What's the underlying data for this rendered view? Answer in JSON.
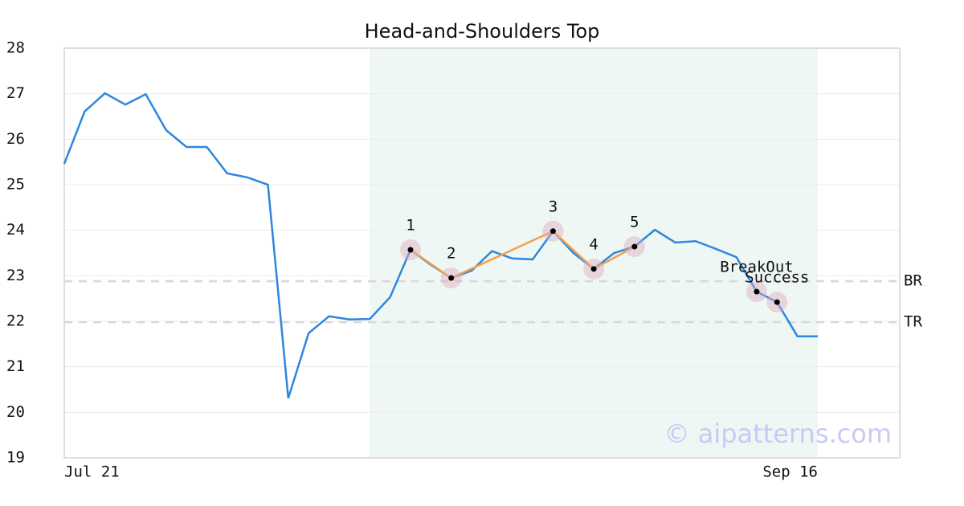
{
  "chart_data": {
    "type": "line",
    "title": "Head-and-Shoulders Top",
    "categories": [
      "Jul 21",
      null,
      null,
      null,
      null,
      null,
      null,
      null,
      null,
      null,
      null,
      null,
      null,
      null,
      null,
      null,
      null,
      null,
      null,
      null,
      null,
      null,
      null,
      null,
      null,
      null,
      null,
      null,
      null,
      null,
      null,
      null,
      null,
      null,
      null,
      null,
      null,
      "Sep 16"
    ],
    "series": [
      {
        "color": "#2e86de",
        "values": [
          25.46,
          26.61,
          27.01,
          26.76,
          26.99,
          26.2,
          25.83,
          25.83,
          25.25,
          25.16,
          25.0,
          20.31,
          21.74,
          22.11,
          22.04,
          22.05,
          22.53,
          23.57,
          23.24,
          22.95,
          23.11,
          23.54,
          23.38,
          23.36,
          23.98,
          23.5,
          23.15,
          23.5,
          23.64,
          24.01,
          23.73,
          23.76,
          23.59,
          23.41,
          22.65,
          22.42,
          21.67,
          21.67
        ]
      }
    ],
    "pattern": {
      "color": "#f4a04a",
      "points": [
        {
          "label": "1",
          "at": 17,
          "value": 23.57
        },
        {
          "label": "2",
          "at": 19,
          "value": 22.95
        },
        {
          "label": "3",
          "at": 24,
          "value": 23.98
        },
        {
          "label": "4",
          "at": 26,
          "value": 23.15
        },
        {
          "label": "5",
          "at": 28,
          "value": 23.64
        }
      ]
    },
    "signals": [
      {
        "label": "BreakOut",
        "at": 34,
        "value": 22.65
      },
      {
        "label": "Success",
        "at": 35,
        "value": 22.42
      }
    ],
    "levels": [
      {
        "label": "BR",
        "value": 22.88
      },
      {
        "label": "TR",
        "value": 21.98
      }
    ],
    "highlight": [
      15,
      37
    ],
    "ylim": [
      19,
      28
    ],
    "yticks": [
      19,
      20,
      21,
      22,
      23,
      24,
      25,
      26,
      27,
      28
    ],
    "grid": true,
    "watermark": "© aipatterns.com"
  }
}
